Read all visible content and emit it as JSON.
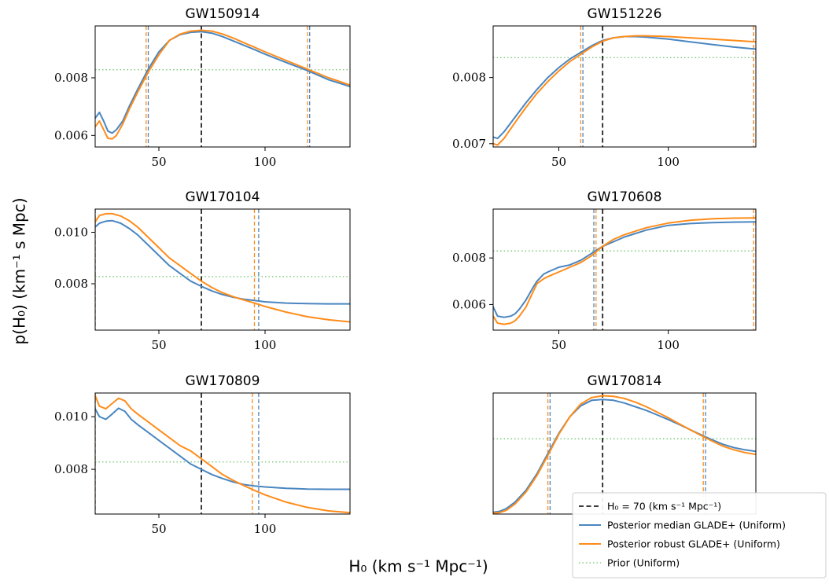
{
  "figure": {
    "ylabel": "p(H₀) (km⁻¹ s Mpc)",
    "xlabel": "H₀ (km s⁻¹ Mpc⁻¹)"
  },
  "colors": {
    "median": "#4a86c0",
    "robust": "#ff8c1a",
    "prior": "#6cc36c",
    "truth": "#222222"
  },
  "legend": {
    "items": [
      {
        "key": "truth",
        "label": "H₀ = 70 (km s⁻¹ Mpc⁻¹)"
      },
      {
        "key": "median",
        "label": "Posterior median GLADE+ (Uniform)"
      },
      {
        "key": "robust",
        "label": "Posterior robust GLADE+ (Uniform)"
      },
      {
        "key": "prior",
        "label": "Prior (Uniform)"
      }
    ]
  },
  "chart_data": [
    {
      "type": "line",
      "title": "GW150914",
      "xlim": [
        20,
        140
      ],
      "ylim": [
        0.0056,
        0.0098
      ],
      "xticks": [
        50,
        100
      ],
      "yticks": [
        0.006,
        0.008
      ],
      "ytick_labels": [
        "0.006",
        "0.008"
      ],
      "prior": 0.00828,
      "h0_true": 70,
      "median_lines": [
        45,
        121
      ],
      "robust_lines": [
        44,
        120
      ],
      "series": [
        {
          "key": "median",
          "x": [
            20,
            22,
            24,
            26,
            28,
            30,
            33,
            36,
            40,
            45,
            50,
            55,
            60,
            65,
            70,
            75,
            80,
            85,
            90,
            95,
            100,
            110,
            120,
            130,
            140
          ],
          "y": [
            0.0066,
            0.0068,
            0.0065,
            0.00615,
            0.00608,
            0.0062,
            0.0065,
            0.007,
            0.0076,
            0.0083,
            0.0089,
            0.0093,
            0.0095,
            0.00958,
            0.0096,
            0.00955,
            0.00943,
            0.00928,
            0.00913,
            0.00898,
            0.00882,
            0.00853,
            0.00825,
            0.00793,
            0.0077
          ]
        },
        {
          "key": "robust",
          "x": [
            20,
            22,
            24,
            26,
            28,
            30,
            33,
            36,
            40,
            45,
            50,
            55,
            60,
            65,
            70,
            75,
            80,
            85,
            90,
            95,
            100,
            110,
            120,
            130,
            140
          ],
          "y": [
            0.0063,
            0.0065,
            0.0062,
            0.0059,
            0.00588,
            0.006,
            0.0064,
            0.0069,
            0.0075,
            0.0082,
            0.0088,
            0.0093,
            0.00952,
            0.00962,
            0.00965,
            0.00962,
            0.00952,
            0.00938,
            0.00922,
            0.00906,
            0.0089,
            0.0086,
            0.0083,
            0.008,
            0.00775
          ]
        }
      ]
    },
    {
      "type": "line",
      "title": "GW151226",
      "xlim": [
        20,
        140
      ],
      "ylim": [
        0.00695,
        0.00878
      ],
      "xticks": [
        50,
        100
      ],
      "yticks": [
        0.007,
        0.008
      ],
      "ytick_labels": [
        "0.007",
        "0.008"
      ],
      "prior": 0.0083,
      "h0_true": 70,
      "median_lines": [
        61,
        139
      ],
      "robust_lines": [
        60,
        139
      ],
      "series": [
        {
          "key": "median",
          "x": [
            20,
            22,
            25,
            30,
            35,
            40,
            45,
            50,
            55,
            60,
            65,
            70,
            75,
            80,
            85,
            90,
            100,
            110,
            120,
            130,
            140
          ],
          "y": [
            0.0071,
            0.00708,
            0.00718,
            0.0074,
            0.00762,
            0.00782,
            0.008,
            0.00815,
            0.00828,
            0.00838,
            0.00848,
            0.00856,
            0.0086,
            0.00862,
            0.00862,
            0.00861,
            0.00858,
            0.00854,
            0.0085,
            0.00846,
            0.00843
          ]
        },
        {
          "key": "robust",
          "x": [
            20,
            22,
            25,
            30,
            35,
            40,
            45,
            50,
            55,
            60,
            65,
            70,
            75,
            80,
            85,
            90,
            100,
            110,
            120,
            130,
            140
          ],
          "y": [
            0.007,
            0.00698,
            0.00708,
            0.00732,
            0.00755,
            0.00776,
            0.00794,
            0.0081,
            0.00824,
            0.00835,
            0.00846,
            0.00855,
            0.0086,
            0.00862,
            0.00863,
            0.00863,
            0.00862,
            0.0086,
            0.00858,
            0.00856,
            0.00854
          ]
        }
      ]
    },
    {
      "type": "line",
      "title": "GW170104",
      "xlim": [
        20,
        140
      ],
      "ylim": [
        0.0062,
        0.0109
      ],
      "xticks": [
        50,
        100
      ],
      "yticks": [
        0.008,
        0.01
      ],
      "ytick_labels": [
        "0.008",
        "0.010"
      ],
      "prior": 0.00828,
      "h0_true": 70,
      "median_lines": [
        20,
        97
      ],
      "robust_lines": [
        20,
        95
      ],
      "series": [
        {
          "key": "median",
          "x": [
            20,
            22,
            25,
            28,
            32,
            36,
            40,
            45,
            50,
            55,
            60,
            65,
            70,
            75,
            80,
            85,
            90,
            95,
            100,
            110,
            120,
            130,
            140
          ],
          "y": [
            0.0102,
            0.01035,
            0.01043,
            0.01045,
            0.01035,
            0.01015,
            0.0099,
            0.0095,
            0.0091,
            0.0087,
            0.0084,
            0.0081,
            0.0079,
            0.00772,
            0.00758,
            0.00748,
            0.0074,
            0.00735,
            0.0073,
            0.00725,
            0.00723,
            0.00722,
            0.00722
          ]
        },
        {
          "key": "robust",
          "x": [
            20,
            22,
            25,
            28,
            32,
            36,
            40,
            45,
            50,
            55,
            60,
            65,
            70,
            75,
            80,
            85,
            90,
            95,
            100,
            110,
            120,
            130,
            140
          ],
          "y": [
            0.0104,
            0.01065,
            0.01072,
            0.01072,
            0.01063,
            0.01045,
            0.0102,
            0.0098,
            0.0094,
            0.009,
            0.0087,
            0.0084,
            0.0081,
            0.00785,
            0.00765,
            0.0075,
            0.00737,
            0.00725,
            0.00712,
            0.0069,
            0.00672,
            0.0066,
            0.00652
          ]
        }
      ]
    },
    {
      "type": "line",
      "title": "GW170608",
      "xlim": [
        20,
        140
      ],
      "ylim": [
        0.0049,
        0.0101
      ],
      "xticks": [
        50,
        100
      ],
      "yticks": [
        0.006,
        0.008
      ],
      "ytick_labels": [
        "0.006",
        "0.008"
      ],
      "prior": 0.0083,
      "h0_true": 70,
      "median_lines": [
        66,
        140
      ],
      "robust_lines": [
        67,
        139
      ],
      "series": [
        {
          "key": "median",
          "x": [
            20,
            22,
            25,
            28,
            30,
            32,
            35,
            38,
            40,
            43,
            45,
            50,
            55,
            60,
            65,
            70,
            75,
            80,
            90,
            100,
            110,
            120,
            130,
            140
          ],
          "y": [
            0.0059,
            0.0055,
            0.00545,
            0.0055,
            0.0056,
            0.0058,
            0.0062,
            0.0067,
            0.007,
            0.0073,
            0.0074,
            0.0076,
            0.0077,
            0.0079,
            0.0082,
            0.0085,
            0.0087,
            0.0089,
            0.0092,
            0.0094,
            0.00948,
            0.00952,
            0.00954,
            0.00955
          ]
        },
        {
          "key": "robust",
          "x": [
            20,
            22,
            25,
            28,
            30,
            32,
            35,
            38,
            40,
            43,
            45,
            50,
            55,
            60,
            65,
            70,
            75,
            80,
            90,
            100,
            110,
            120,
            130,
            140
          ],
          "y": [
            0.0055,
            0.0052,
            0.00515,
            0.0052,
            0.0053,
            0.0055,
            0.0059,
            0.0065,
            0.0069,
            0.0071,
            0.0072,
            0.0074,
            0.0076,
            0.0078,
            0.0081,
            0.0085,
            0.0088,
            0.009,
            0.0093,
            0.0095,
            0.00962,
            0.00968,
            0.00971,
            0.00972
          ]
        }
      ]
    },
    {
      "type": "line",
      "title": "GW170809",
      "xlim": [
        20,
        140
      ],
      "ylim": [
        0.0063,
        0.0109
      ],
      "xticks": [
        50,
        100
      ],
      "yticks": [
        0.008,
        0.01
      ],
      "ytick_labels": [
        "0.008",
        "0.010"
      ],
      "prior": 0.00828,
      "h0_true": 70,
      "median_lines": [
        20,
        97
      ],
      "robust_lines": [
        20,
        94
      ],
      "series": [
        {
          "key": "median",
          "x": [
            20,
            22,
            25,
            28,
            31,
            34,
            37,
            40,
            45,
            50,
            55,
            60,
            65,
            70,
            75,
            80,
            85,
            90,
            95,
            100,
            110,
            120,
            130,
            140
          ],
          "y": [
            0.0103,
            0.01,
            0.0099,
            0.0101,
            0.01032,
            0.0102,
            0.0099,
            0.0097,
            0.0094,
            0.0091,
            0.0088,
            0.0085,
            0.0082,
            0.008,
            0.0078,
            0.00765,
            0.00752,
            0.00742,
            0.00737,
            0.00733,
            0.00728,
            0.00725,
            0.00724,
            0.00724
          ]
        },
        {
          "key": "robust",
          "x": [
            20,
            22,
            25,
            28,
            31,
            34,
            37,
            40,
            45,
            50,
            55,
            60,
            65,
            70,
            75,
            80,
            85,
            90,
            95,
            100,
            110,
            120,
            130,
            140
          ],
          "y": [
            0.0108,
            0.0104,
            0.0103,
            0.0105,
            0.0107,
            0.0106,
            0.0103,
            0.0101,
            0.0098,
            0.0095,
            0.0092,
            0.0089,
            0.0087,
            0.0084,
            0.0081,
            0.0078,
            0.00758,
            0.00738,
            0.0072,
            0.00703,
            0.00675,
            0.00655,
            0.00642,
            0.00635
          ]
        }
      ]
    },
    {
      "type": "line",
      "title": "GW170814",
      "xlim": [
        20,
        140
      ],
      "ylim": [
        0.0041,
        0.0107
      ],
      "xticks": [],
      "yticks": [],
      "ytick_labels": [],
      "prior": 0.0082,
      "h0_true": 70,
      "median_lines": [
        46,
        117
      ],
      "robust_lines": [
        45,
        116
      ],
      "series": [
        {
          "key": "median",
          "x": [
            20,
            23,
            26,
            30,
            35,
            40,
            45,
            50,
            55,
            60,
            65,
            70,
            75,
            80,
            85,
            90,
            95,
            100,
            105,
            110,
            115,
            120,
            125,
            130,
            135,
            140
          ],
          "y": [
            0.0042,
            0.00425,
            0.0044,
            0.00475,
            0.0054,
            0.0063,
            0.0074,
            0.0085,
            0.0094,
            0.01,
            0.0103,
            0.01035,
            0.0103,
            0.01015,
            0.00995,
            0.00975,
            0.0095,
            0.00925,
            0.00898,
            0.0087,
            0.00842,
            0.00815,
            0.0079,
            0.00772,
            0.0076,
            0.00752
          ]
        },
        {
          "key": "robust",
          "x": [
            20,
            23,
            26,
            30,
            35,
            40,
            45,
            50,
            55,
            60,
            65,
            70,
            75,
            80,
            85,
            90,
            95,
            100,
            105,
            110,
            115,
            120,
            125,
            130,
            135,
            140
          ],
          "y": [
            0.00415,
            0.00418,
            0.0043,
            0.00465,
            0.0053,
            0.0062,
            0.0073,
            0.00845,
            0.0094,
            0.0101,
            0.01045,
            0.01055,
            0.01052,
            0.0104,
            0.0102,
            0.00995,
            0.00965,
            0.00935,
            0.00902,
            0.0087,
            0.00838,
            0.00808,
            0.0078,
            0.0076,
            0.00745,
            0.00735
          ]
        }
      ]
    }
  ]
}
